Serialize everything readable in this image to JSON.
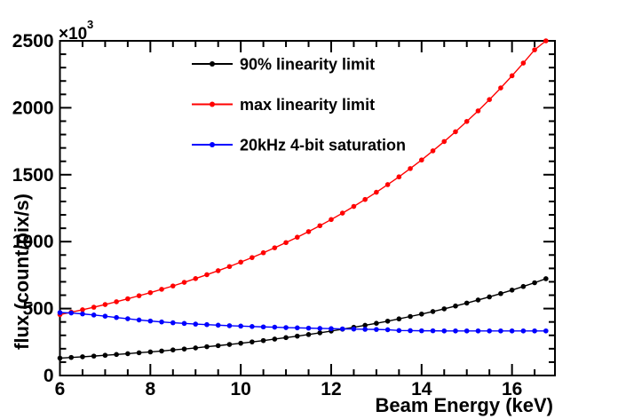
{
  "chart_data": {
    "type": "line",
    "title": "",
    "xlabel": "Beam Energy (keV)",
    "ylabel": "flux (count/pix/s)",
    "y_multiplier_base": "×10",
    "y_multiplier_exp": "3",
    "xlim": [
      6,
      16.95
    ],
    "ylim": [
      0,
      2500
    ],
    "x_major_ticks": [
      6,
      8,
      10,
      12,
      14,
      16
    ],
    "x_minor_step": 0.5,
    "y_major_ticks": [
      0,
      500,
      1000,
      1500,
      2000,
      2500
    ],
    "y_minor_step": 100,
    "grid": false,
    "legend_position": "top-left-inside",
    "background": "#ffffff",
    "frame_color": "#000000",
    "x": [
      6.0,
      6.25,
      6.5,
      6.75,
      7.0,
      7.25,
      7.5,
      7.75,
      8.0,
      8.25,
      8.5,
      8.75,
      9.0,
      9.25,
      9.5,
      9.75,
      10.0,
      10.25,
      10.5,
      10.75,
      11.0,
      11.25,
      11.5,
      11.75,
      12.0,
      12.25,
      12.5,
      12.75,
      13.0,
      13.25,
      13.5,
      13.75,
      14.0,
      14.25,
      14.5,
      14.75,
      15.0,
      15.25,
      15.5,
      15.75,
      16.0,
      16.25,
      16.5,
      16.75
    ],
    "series": [
      {
        "name": "90% linearity limit",
        "color": "#000000",
        "values": [
          130,
          135,
          140,
          145,
          151,
          157,
          163,
          170,
          176,
          183,
          191,
          198,
          206,
          215,
          223,
          232,
          241,
          251,
          261,
          272,
          283,
          294,
          306,
          319,
          332,
          346,
          360,
          375,
          390,
          406,
          423,
          441,
          459,
          478,
          498,
          519,
          541,
          564,
          587,
          612,
          638,
          665,
          693,
          723
        ]
      },
      {
        "name": "max linearity limit",
        "color": "#ff0000",
        "values": [
          455,
          473,
          491,
          510,
          530,
          551,
          573,
          596,
          619,
          644,
          669,
          696,
          724,
          753,
          783,
          814,
          847,
          881,
          917,
          954,
          993,
          1033,
          1075,
          1119,
          1165,
          1213,
          1263,
          1315,
          1369,
          1426,
          1484,
          1546,
          1610,
          1678,
          1748,
          1821,
          1898,
          1977,
          2061,
          2148,
          2239,
          2334,
          2433,
          2500
        ]
      },
      {
        "name": "20kHz 4-bit saturation",
        "color": "#0000ff",
        "values": [
          470,
          467,
          460,
          452,
          443,
          433,
          424,
          415,
          407,
          400,
          394,
          389,
          384,
          380,
          376,
          372,
          369,
          366,
          363,
          361,
          358,
          356,
          354,
          352,
          350,
          348,
          347,
          345,
          344,
          342,
          336,
          335,
          334,
          334,
          333,
          333,
          333,
          333,
          333,
          333,
          333,
          333,
          333,
          333
        ]
      }
    ]
  }
}
